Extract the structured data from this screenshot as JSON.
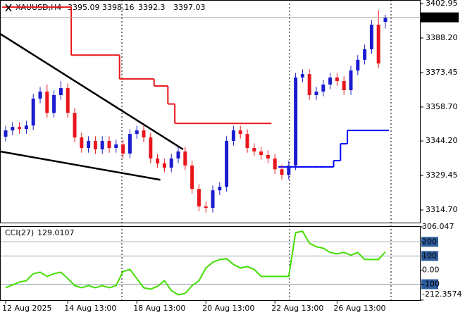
{
  "chart_data": {
    "type": "candlestick",
    "title": "XAUUSD,H4",
    "up_color": "#1c1ccf",
    "down_color": "#e8161c",
    "categories": [
      "12 Aug 2025",
      null,
      null,
      null,
      null,
      null,
      null,
      null,
      null,
      "14 Aug 13:00",
      null,
      null,
      null,
      null,
      null,
      null,
      null,
      null,
      null,
      "18 Aug 13:00",
      null,
      null,
      null,
      null,
      null,
      null,
      null,
      null,
      null,
      "20 Aug 13:00",
      null,
      null,
      null,
      null,
      null,
      null,
      null,
      null,
      null,
      "22 Aug 13:00",
      null,
      null,
      null,
      null,
      null,
      null,
      null,
      null,
      "26 Aug 13:00",
      null,
      null,
      null,
      null,
      null,
      null,
      null
    ],
    "open": [
      3346.0,
      3348.7,
      3350.2,
      3349.3,
      3350.8,
      3362.3,
      3365.3,
      3356.2,
      3363.8,
      3366.8,
      3356.2,
      3345.7,
      3341.2,
      3344.2,
      3340.6,
      3344.2,
      3341.2,
      3342.7,
      3338.8,
      3347.2,
      3348.7,
      3345.7,
      3336.7,
      3334.6,
      3332.8,
      3336.7,
      3339.7,
      3333.7,
      3323.7,
      3316.2,
      3315.6,
      3323.1,
      3324.6,
      3344.2,
      3348.7,
      3347.2,
      3341.2,
      3339.7,
      3338.2,
      3336.7,
      3332.1,
      3329.7,
      3333.7,
      3371.3,
      3372.8,
      3363.8,
      3365.3,
      3368.3,
      3371.3,
      3369.8,
      3365.9,
      3374.3,
      3378.9,
      3383.4,
      3393.9,
      3395.09
    ],
    "high": [
      3350.7,
      3352.2,
      3352.2,
      3352.8,
      3364.3,
      3367.3,
      3368.3,
      3365.8,
      3369.8,
      3368.8,
      3358.2,
      3347.7,
      3346.2,
      3346.2,
      3346.2,
      3346.2,
      3344.7,
      3344.7,
      3349.2,
      3350.7,
      3350.7,
      3347.7,
      3338.7,
      3336.6,
      3338.7,
      3341.7,
      3341.7,
      3335.7,
      3325.7,
      3318.2,
      3325.1,
      3326.6,
      3346.2,
      3350.7,
      3350.7,
      3349.2,
      3343.2,
      3341.7,
      3340.2,
      3338.7,
      3334.1,
      3335.7,
      3373.3,
      3374.8,
      3374.8,
      3367.3,
      3370.3,
      3373.3,
      3373.3,
      3371.8,
      3376.3,
      3380.9,
      3385.4,
      3395.9,
      3400.1,
      3398.16
    ],
    "low": [
      3344.0,
      3346.7,
      3347.3,
      3347.3,
      3348.8,
      3360.3,
      3354.2,
      3354.2,
      3361.8,
      3354.2,
      3343.7,
      3339.2,
      3339.2,
      3338.6,
      3338.6,
      3339.2,
      3339.2,
      3336.8,
      3336.8,
      3345.2,
      3343.7,
      3334.7,
      3332.6,
      3330.8,
      3330.8,
      3334.7,
      3331.7,
      3321.7,
      3314.2,
      3313.6,
      3313.6,
      3321.1,
      3322.6,
      3342.2,
      3345.2,
      3339.2,
      3337.7,
      3336.2,
      3334.7,
      3330.1,
      3327.7,
      3327.7,
      3331.7,
      3369.3,
      3361.8,
      3361.8,
      3363.3,
      3366.3,
      3367.8,
      3363.9,
      3363.9,
      3372.3,
      3376.9,
      3381.4,
      3375.3,
      3392.3
    ],
    "close": [
      3348.7,
      3350.2,
      3349.3,
      3350.8,
      3362.3,
      3365.3,
      3356.2,
      3363.8,
      3366.8,
      3356.2,
      3345.7,
      3341.2,
      3344.2,
      3340.6,
      3344.2,
      3341.2,
      3342.7,
      3338.8,
      3347.2,
      3348.7,
      3345.7,
      3336.7,
      3334.6,
      3332.8,
      3336.7,
      3339.7,
      3333.7,
      3323.7,
      3316.2,
      3315.6,
      3323.1,
      3324.6,
      3344.2,
      3348.7,
      3347.2,
      3341.2,
      3339.7,
      3338.2,
      3336.7,
      3332.1,
      3329.7,
      3333.7,
      3371.3,
      3372.8,
      3363.8,
      3365.3,
      3368.3,
      3371.3,
      3369.8,
      3365.9,
      3374.3,
      3378.9,
      3383.4,
      3393.9,
      3377.3,
      3397.03
    ],
    "ylim": [
      3309.3,
      3404.45
    ],
    "yticks": [
      3402.95,
      {
        "value": 3388.2,
        "label": "3388.20"
      },
      3373.45,
      {
        "value": 3358.7,
        "label": "3358.70"
      },
      {
        "value": 3344.2,
        "label": "3344.20"
      },
      3329.45,
      {
        "value": 3314.7,
        "label": "3314.70"
      }
    ],
    "overlays": [
      {
        "color": "#e8161c",
        "values": [
          3401.4,
          3401.4,
          3401.4,
          3401.4,
          3401.4,
          3401.4,
          3401.4,
          3401.4,
          3401.4,
          3401.4,
          3380.9,
          3380.9,
          3380.9,
          3380.9,
          3380.9,
          3380.9,
          3380.9,
          3370.7,
          3370.7,
          3370.7,
          3370.7,
          3370.7,
          3367.7,
          3367.7,
          3360.0,
          3351.7,
          3351.7,
          3351.7,
          3351.7,
          3351.7,
          3351.7,
          3351.7,
          3351.7,
          3351.7,
          3351.7,
          3351.7,
          3351.7,
          3351.7,
          3351.7,
          null,
          null,
          null,
          null,
          null,
          null,
          null,
          null,
          null,
          null,
          null,
          null,
          null,
          null,
          null,
          null,
          null
        ]
      },
      {
        "color": "#0000ff",
        "values": [
          null,
          null,
          null,
          null,
          null,
          null,
          null,
          null,
          null,
          null,
          null,
          null,
          null,
          null,
          null,
          null,
          null,
          null,
          null,
          null,
          null,
          null,
          null,
          null,
          null,
          null,
          null,
          null,
          null,
          null,
          null,
          null,
          null,
          null,
          null,
          null,
          null,
          null,
          null,
          null,
          3333.1,
          3333.1,
          3333.1,
          3333.1,
          3333.1,
          3333.1,
          3333.1,
          3333.1,
          3335.8,
          3343.0,
          3348.7,
          3348.7,
          3348.7,
          3348.7,
          3348.7,
          3348.7
        ]
      }
    ],
    "trendlines": [
      {
        "x": [
          -0.8,
          25.7
        ],
        "y": [
          3390.0,
          3340.6
        ]
      },
      {
        "x": [
          -0.8,
          22.4
        ],
        "y": [
          3339.7,
          3327.6
        ]
      }
    ],
    "indicator": {
      "title": "CCI(27)",
      "color": "#44dd00",
      "values": [
        -125,
        -105,
        -85,
        -75,
        -25,
        -15,
        -45,
        -25,
        -15,
        -60,
        -110,
        -125,
        -110,
        -125,
        -110,
        -125,
        -110,
        -10,
        5,
        -60,
        -125,
        -135,
        -115,
        -75,
        -145,
        -175,
        -165,
        -110,
        -75,
        15,
        55,
        75,
        80,
        40,
        15,
        25,
        5,
        -45,
        -45,
        -45,
        -45,
        -45,
        265,
        275,
        190,
        165,
        155,
        125,
        115,
        125,
        105,
        125,
        75,
        75,
        75,
        129.0107
      ],
      "ylim": [
        -212.3574,
        306.047
      ],
      "yticks": [
        306.047,
        200,
        100,
        {
          "value": 0,
          "label": "0.00"
        },
        -100,
        -212.3574
      ],
      "levels": [
        200,
        100,
        -100
      ]
    }
  }
}
